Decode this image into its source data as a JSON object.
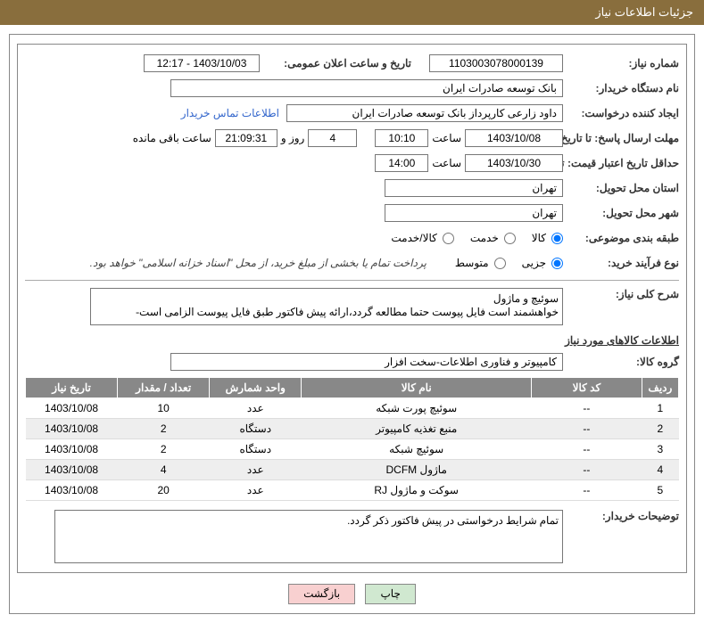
{
  "header": {
    "title": "جزئیات اطلاعات نیاز"
  },
  "form": {
    "need_number_label": "شماره نیاز:",
    "need_number": "1103003078000139",
    "announce_datetime_label": "تاریخ و ساعت اعلان عمومی:",
    "announce_datetime": "1403/10/03 - 12:17",
    "buyer_org_label": "نام دستگاه خریدار:",
    "buyer_org": "بانک توسعه صادرات ایران",
    "requester_label": "ایجاد کننده درخواست:",
    "requester": "داود زارعی کارپرداز بانک توسعه صادرات ایران",
    "contact_link": "اطلاعات تماس خریدار",
    "response_deadline_label": "مهلت ارسال پاسخ: تا تاریخ:",
    "response_date": "1403/10/08",
    "time_label": "ساعت",
    "response_time": "10:10",
    "days_remaining": "4",
    "days_text": "روز و",
    "countdown_time": "21:09:31",
    "remaining_text": "ساعت باقی مانده",
    "price_validity_label": "حداقل تاریخ اعتبار قیمت: تا تاریخ:",
    "price_validity_date": "1403/10/30",
    "price_validity_time": "14:00",
    "delivery_province_label": "استان محل تحویل:",
    "delivery_province": "تهران",
    "delivery_city_label": "شهر محل تحویل:",
    "delivery_city": "تهران",
    "category_label": "طبقه بندی موضوعی:",
    "category_options": {
      "goods": "کالا",
      "service": "خدمت",
      "both": "کالا/خدمت"
    },
    "purchase_type_label": "نوع فرآیند خرید:",
    "purchase_options": {
      "partial": "جزیی",
      "medium": "متوسط"
    },
    "payment_note": "پرداخت تمام یا بخشی از مبلغ خرید، از محل \"اسناد خزانه اسلامی\" خواهد بود.",
    "need_summary_label": "شرح کلی نیاز:",
    "need_summary": "سوئیچ و ماژول\nخواهشمند است فایل پیوست حتما مطالعه گردد،ارائه پیش فاکتور طبق فایل پیوست الزامی است-",
    "items_section_title": "اطلاعات کالاهای مورد نیاز",
    "goods_group_label": "گروه کالا:",
    "goods_group": "کامپیوتر و فناوری اطلاعات-سخت افزار",
    "buyer_notes_label": "توضیحات خریدار:",
    "buyer_notes": "تمام شرایط درخواستی در پیش فاکتور ذکر گردد."
  },
  "table": {
    "columns": {
      "seq": "ردیف",
      "code": "کد کالا",
      "name": "نام کالا",
      "unit": "واحد شمارش",
      "qty": "تعداد / مقدار",
      "date": "تاریخ نیاز"
    },
    "rows": [
      {
        "seq": "1",
        "code": "--",
        "name": "سوئیچ پورت شبکه",
        "unit": "عدد",
        "qty": "10",
        "date": "1403/10/08"
      },
      {
        "seq": "2",
        "code": "--",
        "name": "منبع تغذیه کامپیوتر",
        "unit": "دستگاه",
        "qty": "2",
        "date": "1403/10/08"
      },
      {
        "seq": "3",
        "code": "--",
        "name": "سوئیچ شبکه",
        "unit": "دستگاه",
        "qty": "2",
        "date": "1403/10/08"
      },
      {
        "seq": "4",
        "code": "--",
        "name": "ماژول DCFM",
        "unit": "عدد",
        "qty": "4",
        "date": "1403/10/08"
      },
      {
        "seq": "5",
        "code": "--",
        "name": "سوکت و ماژول RJ",
        "unit": "عدد",
        "qty": "20",
        "date": "1403/10/08"
      }
    ]
  },
  "buttons": {
    "print": "چاپ",
    "back": "بازگشت"
  }
}
